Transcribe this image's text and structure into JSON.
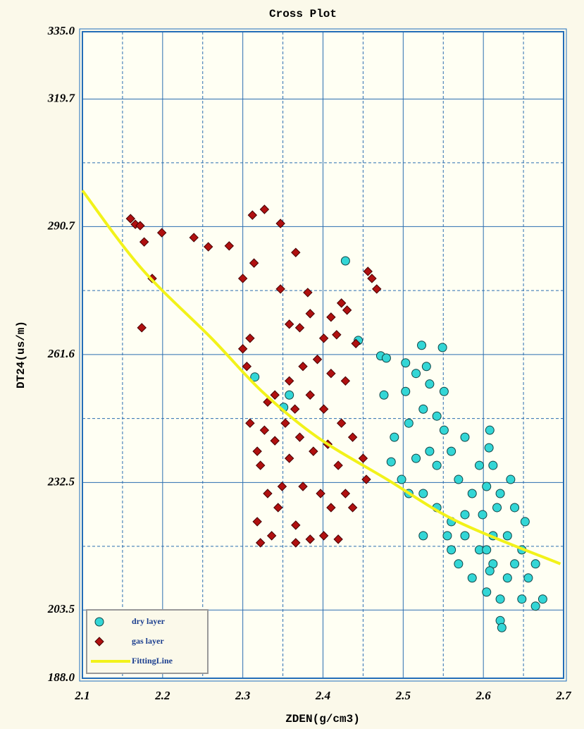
{
  "chart_data": {
    "type": "scatter",
    "title": "Cross Plot",
    "xlabel": "ZDEN(g/cm3)",
    "ylabel": "DT24(us/m)",
    "xlim": [
      2.1,
      2.7
    ],
    "xticks": [
      2.1,
      2.2,
      2.3,
      2.4,
      2.5,
      2.6,
      2.7
    ],
    "xminorticks": [
      2.15,
      2.25,
      2.35,
      2.45,
      2.55,
      2.65
    ],
    "ylim": [
      188,
      335
    ],
    "yticks": [
      {
        "value": 335,
        "label": "335.0"
      },
      319.7,
      290.7,
      261.6,
      232.5,
      203.5,
      {
        "value": 188,
        "label": "188.0"
      }
    ],
    "yminorticks": [
      305.2,
      276.15,
      247.05,
      218
    ],
    "grid": true,
    "legend": "lower left",
    "series": [
      {
        "name": "dry layer",
        "color": "#33d6d6",
        "marker": "circle",
        "x": [
          2.428,
          2.444,
          2.315,
          2.358,
          2.351,
          2.472,
          2.479,
          2.503,
          2.523,
          2.549,
          2.529,
          2.516,
          2.533,
          2.551,
          2.476,
          2.503,
          2.525,
          2.542,
          2.507,
          2.489,
          2.485,
          2.498,
          2.516,
          2.533,
          2.551,
          2.56,
          2.577,
          2.608,
          2.607,
          2.507,
          2.525,
          2.542,
          2.56,
          2.577,
          2.595,
          2.612,
          2.63,
          2.569,
          2.586,
          2.604,
          2.621,
          2.569,
          2.586,
          2.604,
          2.621,
          2.648,
          2.665,
          2.674,
          2.621,
          2.623,
          2.604,
          2.612,
          2.63,
          2.648,
          2.665,
          2.595,
          2.612,
          2.634,
          2.652,
          2.542,
          2.555,
          2.577,
          2.599,
          2.617,
          2.639,
          2.525,
          2.56,
          2.639,
          2.656,
          2.608
        ],
        "values": [
          282.9,
          264.8,
          256.5,
          252.4,
          249.6,
          261.3,
          260.8,
          259.7,
          263.7,
          263.2,
          258.9,
          257.3,
          254.9,
          253.2,
          252.4,
          253.2,
          249.2,
          247.6,
          246.0,
          242.8,
          237.2,
          233.2,
          238.0,
          239.6,
          244.4,
          239.6,
          242.8,
          244.4,
          240.4,
          230.0,
          230.0,
          226.8,
          223.6,
          220.4,
          217.2,
          214.0,
          210.8,
          233.2,
          230.0,
          231.6,
          230.0,
          214.0,
          210.8,
          207.6,
          206.0,
          206.0,
          204.4,
          206.0,
          201.1,
          199.5,
          217.2,
          220.4,
          220.4,
          217.2,
          214.0,
          236.4,
          236.4,
          233.2,
          223.6,
          236.4,
          220.4,
          225.2,
          225.2,
          226.8,
          226.8,
          220.4,
          217.2,
          214.0,
          210.8,
          212.4
        ]
      },
      {
        "name": "gas layer",
        "color": "#b01010",
        "marker": "diamond",
        "x": [
          2.16,
          2.166,
          2.172,
          2.177,
          2.199,
          2.187,
          2.174,
          2.239,
          2.257,
          2.283,
          2.312,
          2.327,
          2.347,
          2.314,
          2.3,
          2.366,
          2.347,
          2.381,
          2.456,
          2.461,
          2.467,
          2.358,
          2.371,
          2.384,
          2.423,
          2.43,
          2.41,
          2.401,
          2.417,
          2.441,
          2.309,
          2.3,
          2.305,
          2.309,
          2.318,
          2.322,
          2.331,
          2.344,
          2.318,
          2.336,
          2.366,
          2.384,
          2.401,
          2.419,
          2.322,
          2.366,
          2.349,
          2.34,
          2.358,
          2.375,
          2.393,
          2.41,
          2.428,
          2.353,
          2.371,
          2.388,
          2.406,
          2.419,
          2.437,
          2.34,
          2.327,
          2.358,
          2.375,
          2.397,
          2.41,
          2.437,
          2.45,
          2.454,
          2.428,
          2.384,
          2.401,
          2.331,
          2.365,
          2.423
        ],
        "values": [
          292.5,
          291.2,
          290.9,
          287.2,
          289.3,
          278.9,
          267.7,
          288.2,
          286.1,
          286.3,
          293.3,
          294.6,
          291.4,
          282.4,
          278.9,
          284.8,
          276.5,
          275.7,
          280.5,
          278.9,
          276.5,
          268.5,
          267.7,
          270.9,
          273.3,
          271.7,
          270.1,
          265.3,
          266.1,
          264.1,
          265.3,
          262.9,
          258.9,
          246.0,
          239.6,
          236.4,
          230.0,
          226.8,
          223.6,
          220.4,
          218.8,
          219.6,
          220.4,
          219.6,
          218.8,
          222.8,
          231.6,
          252.4,
          255.6,
          258.9,
          260.5,
          257.3,
          255.6,
          246.0,
          242.8,
          239.6,
          241.2,
          236.4,
          242.8,
          242.0,
          244.4,
          238.0,
          231.6,
          230.0,
          226.8,
          226.8,
          238.0,
          233.2,
          230.0,
          252.4,
          249.2,
          250.8,
          249.2,
          246.0
        ]
      },
      {
        "name": "FittingLine",
        "color": "#f2f21a",
        "marker": "line",
        "x": [
          2.1,
          2.173,
          2.261,
          2.324,
          2.393,
          2.48,
          2.568,
          2.696
        ],
        "values": [
          298.9,
          281.3,
          265.3,
          253.2,
          242.8,
          233.2,
          223.6,
          214.0
        ]
      }
    ]
  }
}
